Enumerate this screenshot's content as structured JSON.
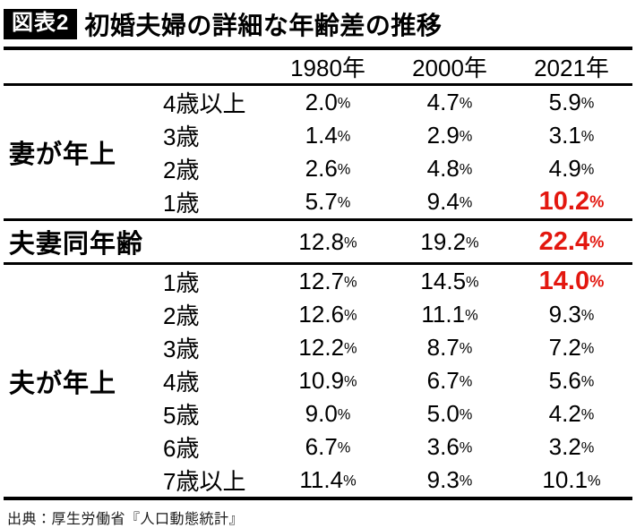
{
  "figure": {
    "badge": "図表2",
    "title": "初婚夫婦の詳細な年齢差の推移"
  },
  "source": "出典：厚生労働省『人口動態統計』",
  "colors": {
    "highlight_red": "#e3170f",
    "badge_bg": "#000000",
    "badge_fg": "#ffffff",
    "rule": "#000000"
  },
  "chart_data": {
    "type": "table",
    "title": "初婚夫婦の詳細な年齢差の推移",
    "unit": "%",
    "columns": [
      "1980年",
      "2000年",
      "2021年"
    ],
    "sections": [
      {
        "group": "妻が年上",
        "full_width_label": false,
        "rows": [
          {
            "label": "4歳以上",
            "values": [
              2.0,
              4.7,
              5.9
            ],
            "red_cols": []
          },
          {
            "label": "3歳",
            "values": [
              1.4,
              2.9,
              3.1
            ],
            "red_cols": []
          },
          {
            "label": "2歳",
            "values": [
              2.6,
              4.8,
              4.9
            ],
            "red_cols": []
          },
          {
            "label": "1歳",
            "values": [
              5.7,
              9.4,
              10.2
            ],
            "red_cols": [
              2
            ]
          }
        ]
      },
      {
        "group": "夫妻同年齢",
        "full_width_label": true,
        "rows": [
          {
            "label": "",
            "values": [
              12.8,
              19.2,
              22.4
            ],
            "red_cols": [
              2
            ]
          }
        ]
      },
      {
        "group": "夫が年上",
        "full_width_label": false,
        "rows": [
          {
            "label": "1歳",
            "values": [
              12.7,
              14.5,
              14.0
            ],
            "red_cols": [
              2
            ]
          },
          {
            "label": "2歳",
            "values": [
              12.6,
              11.1,
              9.3
            ],
            "red_cols": []
          },
          {
            "label": "3歳",
            "values": [
              12.2,
              8.7,
              7.2
            ],
            "red_cols": []
          },
          {
            "label": "4歳",
            "values": [
              10.9,
              6.7,
              5.6
            ],
            "red_cols": []
          },
          {
            "label": "5歳",
            "values": [
              9.0,
              5.0,
              4.2
            ],
            "red_cols": []
          },
          {
            "label": "6歳",
            "values": [
              6.7,
              3.6,
              3.2
            ],
            "red_cols": []
          },
          {
            "label": "7歳以上",
            "values": [
              11.4,
              9.3,
              10.1
            ],
            "red_cols": []
          }
        ]
      }
    ]
  }
}
